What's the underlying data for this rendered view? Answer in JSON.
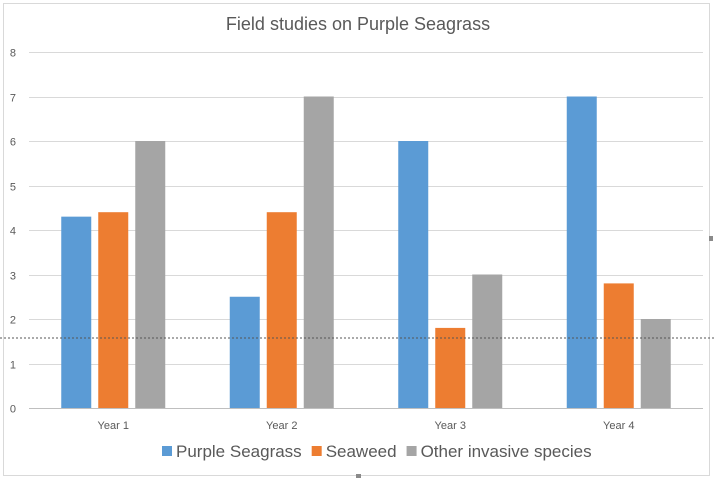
{
  "chart_data": {
    "type": "bar",
    "title": "Field studies on Purple Seagrass",
    "categories": [
      "Year 1",
      "Year 2",
      "Year 3",
      "Year 4"
    ],
    "series": [
      {
        "name": "Purple Seagrass",
        "color": "#5b9bd5",
        "values": [
          4.3,
          2.5,
          6,
          7
        ]
      },
      {
        "name": "Seaweed",
        "color": "#ed7d31",
        "values": [
          4.4,
          4.4,
          1.8,
          2.8
        ]
      },
      {
        "name": "Other invasive species",
        "color": "#a5a5a5",
        "values": [
          6,
          7,
          3,
          2
        ]
      }
    ],
    "ylim": [
      0,
      8
    ],
    "yticks": [
      "0",
      "1",
      "2",
      "3",
      "4",
      "5",
      "6",
      "7",
      "8"
    ],
    "grid": true,
    "legend": "bottom"
  }
}
